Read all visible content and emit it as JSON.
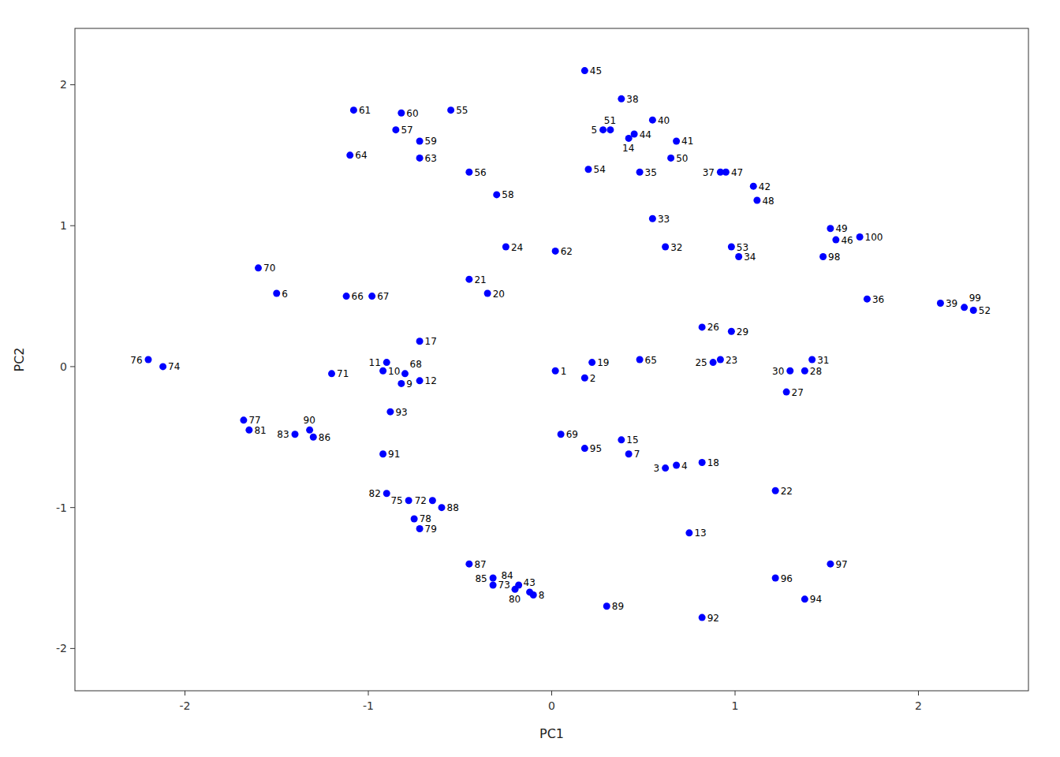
{
  "chart_data": {
    "type": "scatter",
    "xlabel": "PC1",
    "ylabel": "PC2",
    "xlim": [
      -2.6,
      2.6
    ],
    "ylim": [
      -2.3,
      2.4
    ],
    "xticks": [
      -2,
      -1,
      0,
      1,
      2
    ],
    "yticks": [
      -2,
      -1,
      0,
      1,
      2
    ],
    "grid": false,
    "color": "#0000FF",
    "labels": [
      "1",
      "2",
      "3",
      "4",
      "5",
      "6",
      "7",
      "8",
      "9",
      "10",
      "11",
      "12",
      "13",
      "14",
      "15",
      "17",
      "18",
      "19",
      "20",
      "21",
      "22",
      "23",
      "24",
      "25",
      "26",
      "27",
      "28",
      "29",
      "30",
      "31",
      "32",
      "33",
      "34",
      "35",
      "36",
      "37",
      "38",
      "39",
      "40",
      "41",
      "42",
      "43",
      "44",
      "45",
      "46",
      "47",
      "48",
      "49",
      "50",
      "51",
      "52",
      "53",
      "54",
      "55",
      "56",
      "57",
      "58",
      "59",
      "60",
      "61",
      "62",
      "63",
      "64",
      "65",
      "66",
      "67",
      "68",
      "69",
      "70",
      "71",
      "72",
      "73",
      "74",
      "75",
      "76",
      "77",
      "78",
      "79",
      "80",
      "81",
      "82",
      "83",
      "84",
      "85",
      "86",
      "87",
      "88",
      "89",
      "90",
      "91",
      "92",
      "93",
      "94",
      "95",
      "96",
      "97",
      "98",
      "99",
      "100"
    ],
    "x": [
      0.02,
      0.18,
      0.62,
      0.68,
      0.28,
      -1.5,
      0.42,
      -0.1,
      -0.82,
      -0.92,
      -0.9,
      -0.72,
      0.75,
      0.42,
      0.38,
      -0.72,
      0.82,
      0.22,
      -0.35,
      -0.45,
      1.22,
      0.92,
      -0.25,
      0.88,
      0.82,
      1.28,
      1.38,
      0.98,
      1.3,
      1.42,
      0.62,
      0.55,
      1.02,
      0.48,
      1.72,
      0.92,
      0.38,
      2.12,
      0.55,
      0.68,
      1.1,
      -0.12,
      0.45,
      0.18,
      1.55,
      0.95,
      1.12,
      1.52,
      0.65,
      0.32,
      2.3,
      0.98,
      0.2,
      -0.55,
      -0.45,
      -0.85,
      -0.3,
      -0.72,
      -0.82,
      -1.08,
      0.02,
      -0.72,
      -1.1,
      0.48,
      -1.12,
      -0.98,
      -0.8,
      0.05,
      -1.6,
      -1.2,
      -0.65,
      -0.32,
      -2.12,
      -0.78,
      -2.2,
      -1.68,
      -0.75,
      -0.72,
      -0.2,
      -1.65,
      -0.9,
      -1.4,
      -0.18,
      -0.32,
      -1.3,
      -0.45,
      -0.6,
      0.3,
      -1.32,
      -0.92,
      0.82,
      -0.88,
      1.38,
      0.18,
      1.22,
      1.52,
      1.48,
      2.25,
      1.68
    ],
    "values": [
      -0.03,
      -0.08,
      -0.72,
      -0.7,
      1.68,
      0.52,
      -0.62,
      -1.62,
      -0.12,
      -0.03,
      0.03,
      -0.1,
      -1.18,
      1.62,
      -0.52,
      0.18,
      -0.68,
      0.03,
      0.52,
      0.62,
      -0.88,
      0.05,
      0.85,
      0.03,
      0.28,
      -0.18,
      -0.03,
      0.25,
      -0.03,
      0.05,
      0.85,
      1.05,
      0.78,
      1.38,
      0.48,
      1.38,
      1.9,
      0.45,
      1.75,
      1.6,
      1.28,
      -1.6,
      1.65,
      2.1,
      0.9,
      1.38,
      1.18,
      0.98,
      1.48,
      1.68,
      0.4,
      0.85,
      1.4,
      1.82,
      1.38,
      1.68,
      1.22,
      1.6,
      1.8,
      1.82,
      0.82,
      1.48,
      1.5,
      0.05,
      0.5,
      0.5,
      -0.05,
      -0.48,
      0.7,
      -0.05,
      -0.95,
      -1.55,
      0.0,
      -0.95,
      0.05,
      -0.38,
      -1.08,
      -1.15,
      -1.58,
      -0.45,
      -0.9,
      -0.48,
      -1.55,
      -1.5,
      -0.5,
      -1.4,
      -1.0,
      -1.7,
      -0.45,
      -0.62,
      -1.78,
      -0.32,
      -1.65,
      -0.58,
      -1.5,
      -1.4,
      0.78,
      0.42,
      0.92
    ]
  }
}
